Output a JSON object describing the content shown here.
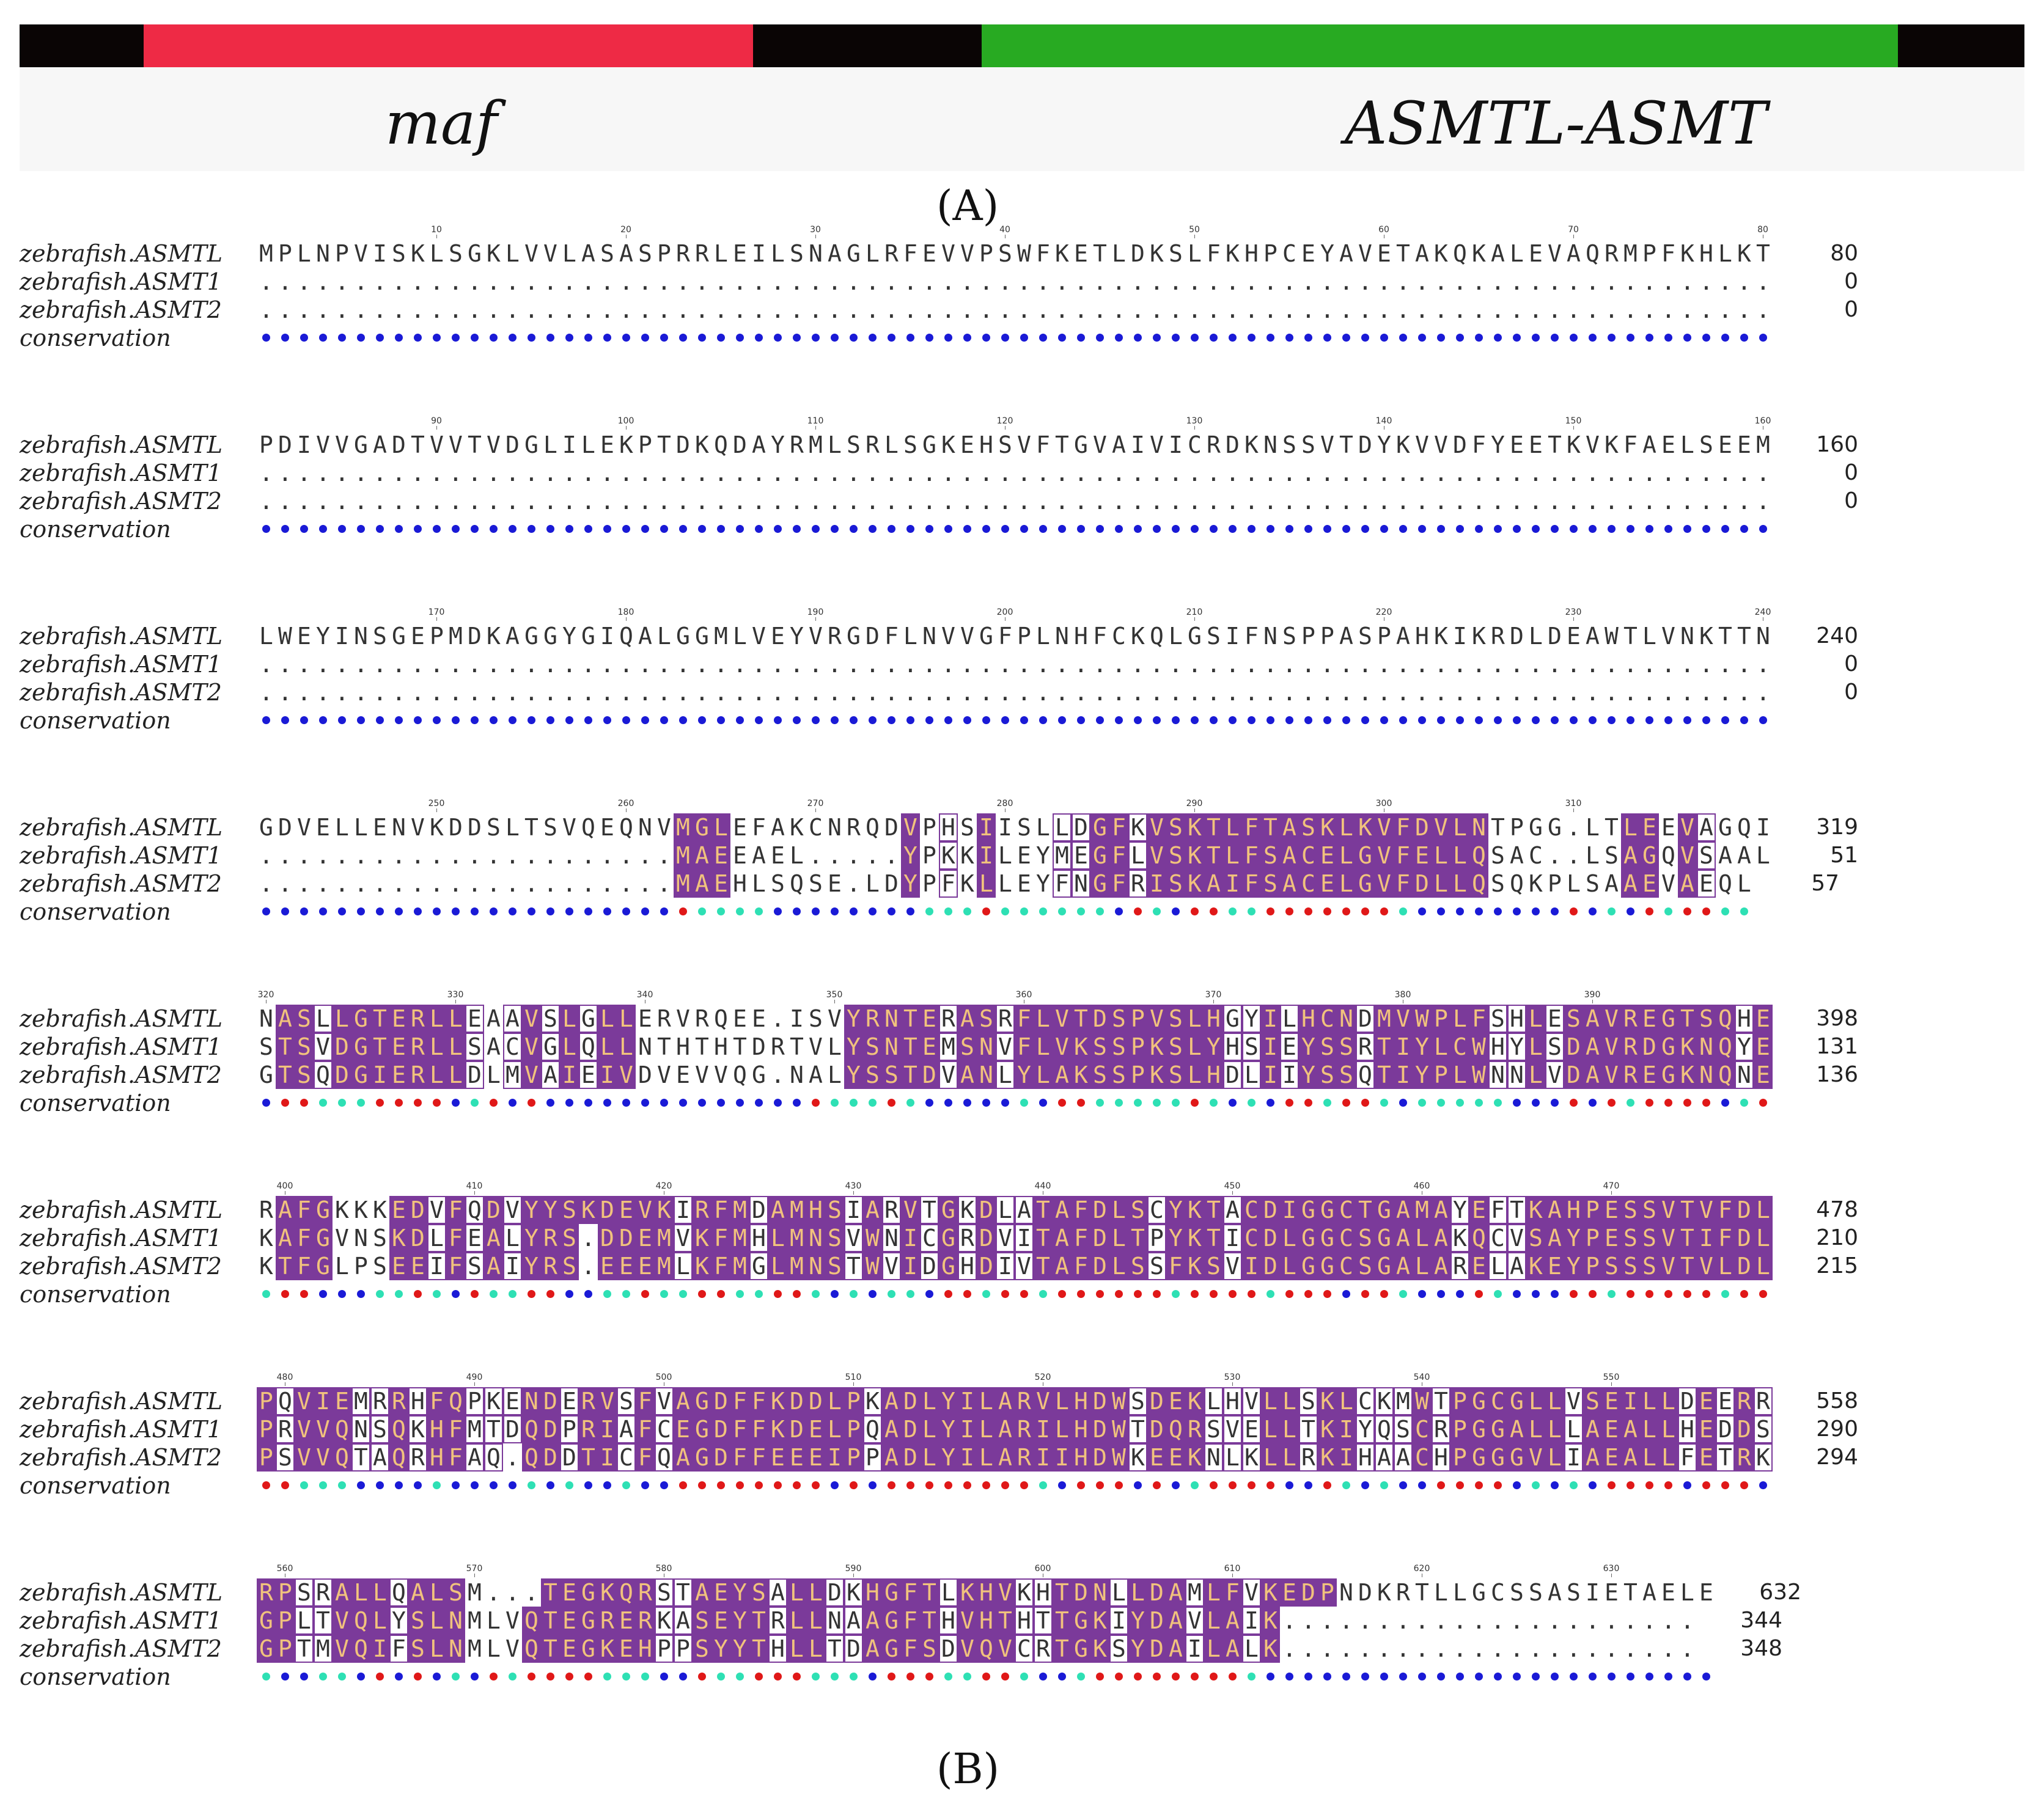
{
  "panel_a": {
    "bar_segments": [
      {
        "color": "#0a0505",
        "start": 0.0,
        "end": 0.062
      },
      {
        "color": "#ee2a45",
        "start": 0.062,
        "end": 0.366
      },
      {
        "color": "#0a0505",
        "start": 0.366,
        "end": 0.48
      },
      {
        "color": "#28aa22",
        "start": 0.48,
        "end": 0.937
      },
      {
        "color": "#0a0505",
        "start": 0.937,
        "end": 1.0
      }
    ],
    "genes": [
      {
        "name": "maf"
      },
      {
        "name": "ASMTL-ASMT"
      }
    ],
    "label": "(A)"
  },
  "panel_b": {
    "label": "(B)",
    "row_names": [
      "zebrafish.ASMTL",
      "zebrafish.ASMT1",
      "zebrafish.ASMT2",
      "conservation"
    ],
    "blocks": [
      {
        "start": 1,
        "seqs": [
          "MPLNPVISKLSGKLVVLASASPRRLEILSNAGLRFEVVPSWFKETLDKSLFKHPCEYAVETAKQKALEVAQRMPFKHLKT",
          "................................................................................",
          "................................................................................"
        ],
        "ends": [
          "80",
          "0",
          "0"
        ],
        "ticks": [
          "10",
          "20",
          "30",
          "40",
          "50",
          "60",
          "70",
          "80"
        ],
        "cons": "bbbbbbbbbbbbbbbbbbbbbbbbbbbbbbbbbbbbbbbbbbbbbbbbbbbbbbbbbbbbbbbbbbbbbbbbbbbbbbbb",
        "marks": ""
      },
      {
        "start": 81,
        "seqs": [
          "PDIVVGADTVVTVDGLILEKPTDKQDAYRMLSRLSGKEHSVFTGVAIVICRDKNSSVTDYKVVDFYEETKVKFAELSEEM",
          "................................................................................",
          "................................................................................"
        ],
        "ends": [
          "160",
          "0",
          "0"
        ],
        "ticks": [
          "90",
          "100",
          "110",
          "120",
          "130",
          "140",
          "150",
          "160"
        ],
        "cons": "bbbbbbbbbbbbbbbbbbbbbbbbbbbbbbbbbbbbbbbbbbbbbbbbbbbbbbbbbbbbbbbbbbbbbbbbbbbbbbbb",
        "marks": ""
      },
      {
        "start": 161,
        "seqs": [
          "LWEYINSGEPMDKAGGYGIQALGGMLVEYVRGDFLNVVGFPLNHFCKQLGSIFNSPPASPAHKIKRDLDEAWTLVNKTTN",
          "................................................................................",
          "................................................................................"
        ],
        "ends": [
          "240",
          "0",
          "0"
        ],
        "ticks": [
          "170",
          "180",
          "190",
          "200",
          "210",
          "220",
          "230",
          "240"
        ],
        "cons": "bbbbbbbbbbbbbbbbbbbbbbbbbbbbbbbbbbbbbbbbbbbbbbbbbbbbbbbbbbbbbbbbbbbbbbbbbbbbbbbb",
        "marks": ""
      },
      {
        "start": 241,
        "seqs": [
          "GDVELLENVKDDSLTSVQEQNVMGLEFAKCNRQDVPHSIISLLDGFKVSKTLFTASKLKVFDVLNTPGG.LTLEEVAGQI",
          "......................MAEEAEL.....YPKKILEYMEGFLVSKTLFSACELGVFELLQSAC..LSAGQVSAAL",
          "......................MAEHLSQSE.LDYPFKLLEYFNGFRISKAIFSACELGVFDLLQSQKPLSAAEVAEQL"
        ],
        "ends": [
          "319",
          "51",
          "57"
        ],
        "ticks": [
          "250",
          "260",
          "270",
          "280",
          "290",
          "300",
          "310"
        ],
        "cons": "bbbbbbbbbbbbbbbbbbbbbbrccccbbbbbbbbcccrccccccbrcbrrccrrrrrrrcbbbbbbbbrbcbrcrrcc",
        "marks": "0000000000000000000000111000000000101010001111111111111111111111100000001101100011"
      },
      {
        "start": 320,
        "seqs": [
          "NASLLGTERLLEAAVSLGLLERVRQEE.ISVYRNTERASRFLVTDSPVSLHGYILHCNDMVWPLFSHLESAVREGTSQHE",
          "STSVDGTERLLSACVGLQLLNTHTHTDRTVLYSNTEMSNVFLVKSSPKSLYHSIEYSSRTIYLCWHYLSDAVRDGKNQYE",
          "GTSQDGIERLLDLMVAIEIVDVEVVQG.NALYSSTDVANLYLAKSSPKSLHDLIIYSSQTIYPLWNNLVDAVREGKNQNE"
        ],
        "ends": [
          "398",
          "131",
          "136"
        ],
        "ticks": [
          "320",
          "330",
          "340",
          "350",
          "360",
          "370",
          "380",
          "390"
        ],
        "cons": "brrcccrrrrbcrbrbbbbbbbbbbbbbbrcccrcbbbbbcbrrcccccrcbcbrrcrrcbcccccbbbrbrcrrrrbcr",
        "marks": "01111111111101111111000000000001111111111111111111111111111111111111111111111111"
      },
      {
        "start": 399,
        "seqs": [
          "RAFGKKKEDVFQDVYYSKDEVKIRFMDAMHSIARVTGKDLATAFDLSCYKTACDIGGCTGAMAYEFTKAHPESSVTVFDL",
          "KAFGVNSKDLFEALYRS.DDEMVKFMHLMNSVWNICGRDVITAFDLTPYKTICDLGGCSGALAKQCVSAYPESSVTIFDL",
          "KTFGLPSEEIFSAIYRS.EEEMLKFMGLMNSTWVIDGHDIVTAFDLSSFKSVIDLGGCSGALARELAKEYPSSSVTVLDL"
        ],
        "ends": [
          "478",
          "210",
          "215"
        ],
        "ticks": [
          "400",
          "410",
          "420",
          "430",
          "440",
          "450",
          "460",
          "470"
        ],
        "cons": "crrbbbccrcbrccrrbbccrccrrccrrcbcbccbrrcrrcrrrrrrcrrrrcrrrbrrcbbbrcbbbrrcrrrrrcrr",
        "marks": "01110001111111111111111111111111111111111111111111111111111111111111111111111111"
      },
      {
        "start": 479,
        "seqs": [
          "PQVIEMRRHFQPKENDERVSFVAGDFFKDDLPKADLYILARVLHDWSDEKLHVLLSKLCKMWTPGCGLLVSEILLDEERR",
          "PRVVQNSQKHFMTDQDPRIAFCEGDFFKDELPQADLYILARILHDWTDQRSVELLTKIYQSCRPGGALLLAEALLHEDDS",
          "PSVVQTAQRHFAQ.QDDTICFQAGDFFEEEIPPADLYILARIIHDWKEEKNLKLLRKIHAACHPGGGVLIAEALLFETRK"
        ],
        "ends": [
          "558",
          "290",
          "294"
        ],
        "ticks": [
          "480",
          "490",
          "500",
          "510",
          "520",
          "530",
          "540",
          "550"
        ],
        "cons": "rrcccbbbbcbbbbcbcbbcbbrrrrrrrrbrbrrrrrrrrcbrrrbrbcrrrrbbrcbcbbrrrrbcbcbrrrrbrrrb",
        "marks": "11111111111111111111111111111111111111111111111111111111111111111111111111111111"
      },
      {
        "start": 559,
        "seqs": [
          "RPSRALLQALSM...TEGKQRSTAEYSALLDKHGFTLKHVKHTDNLLDAMLFVKEDPNDKRTLLGCSSASIETAELE",
          "GPLTVQLYSLNMLVQTEGRERKASEYTRLLNAAGFTHVHTHTTGKIYDAVLAIK......................",
          "GPTMVQIFSLNMLVQTEGKEHPPSYYTHLLTDAGFSDVQVCRTGKSYDAILALK......................"
        ],
        "ends": [
          "632",
          "344",
          "348"
        ],
        "ticks": [
          "560",
          "570",
          "580",
          "590",
          "600",
          "610",
          "620",
          "630"
        ],
        "cons": "cbbccbrbrbcbrcrrrrcccbbrccrrrcccbrrrccrrcbbcrrrrrrrrcbbbbbbbbbbbbbbbbbbbbbbbb",
        "marks": "111111111110001111111111111111111111111111111111111111111000000000000000000000"
      }
    ]
  }
}
